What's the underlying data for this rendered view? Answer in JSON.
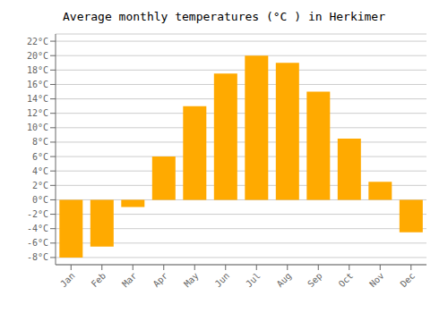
{
  "chart_data": {
    "type": "bar",
    "title": "Average monthly temperatures (°C ) in Herkimer",
    "categories": [
      "Jan",
      "Feb",
      "Mar",
      "Apr",
      "May",
      "Jun",
      "Jul",
      "Aug",
      "Sep",
      "Oct",
      "Nov",
      "Dec"
    ],
    "values": [
      -8,
      -6.5,
      -1,
      6,
      13,
      17.5,
      20,
      19,
      15,
      8.5,
      2.5,
      -4.5
    ],
    "color": "#FFAA00",
    "ylim": [
      -9,
      23
    ],
    "yticks": [
      {
        "value": -8,
        "label": "-8°C"
      },
      {
        "value": -6,
        "label": "-6°C"
      },
      {
        "value": -4,
        "label": "-4°C"
      },
      {
        "value": -2,
        "label": "-2°C"
      },
      {
        "value": 0,
        "label": "0°C"
      },
      {
        "value": 2,
        "label": "2°C"
      },
      {
        "value": 4,
        "label": "4°C"
      },
      {
        "value": 6,
        "label": "6°C"
      },
      {
        "value": 8,
        "label": "8°C"
      },
      {
        "value": 10,
        "label": "10°C"
      },
      {
        "value": 12,
        "label": "12°C"
      },
      {
        "value": 14,
        "label": "14°C"
      },
      {
        "value": 16,
        "label": "16°C"
      },
      {
        "value": 18,
        "label": "18°C"
      },
      {
        "value": 20,
        "label": "20°C"
      },
      {
        "value": 22,
        "label": "22°C"
      }
    ],
    "grid": true
  }
}
